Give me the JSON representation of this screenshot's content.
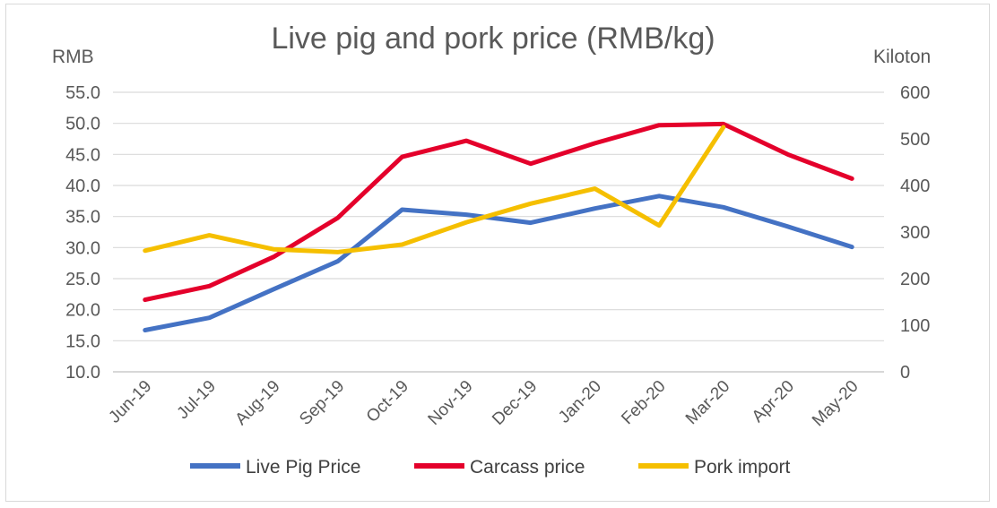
{
  "chart_data": {
    "type": "line",
    "title": "Live pig and pork price (RMB/kg)",
    "y_left_label": "RMB",
    "y_right_label": "Kiloton",
    "categories": [
      "Jun-19",
      "Jul-19",
      "Aug-19",
      "Sep-19",
      "Oct-19",
      "Nov-19",
      "Dec-19",
      "Jan-20",
      "Feb-20",
      "Mar-20",
      "Apr-20",
      "May-20"
    ],
    "y_left": {
      "min": 10,
      "max": 55,
      "ticks": [
        "10.0",
        "15.0",
        "20.0",
        "25.0",
        "30.0",
        "35.0",
        "40.0",
        "45.0",
        "50.0",
        "55.0"
      ]
    },
    "y_right": {
      "min": 0,
      "max": 600,
      "ticks": [
        "0",
        "100",
        "200",
        "300",
        "400",
        "500",
        "600"
      ]
    },
    "grid": true,
    "legend_position": "bottom",
    "series": [
      {
        "name": "Live Pig Price",
        "axis": "left",
        "color": "#4472C4",
        "values": [
          16.7,
          18.7,
          23.3,
          27.8,
          36.1,
          35.3,
          34.0,
          36.3,
          38.3,
          36.5,
          33.4,
          30.1
        ]
      },
      {
        "name": "Carcass price",
        "axis": "left",
        "color": "#E4002B",
        "values": [
          21.6,
          23.8,
          28.5,
          34.8,
          44.6,
          47.2,
          43.5,
          46.8,
          49.7,
          49.9,
          45.0,
          41.1
        ]
      },
      {
        "name": "Pork import",
        "axis": "right",
        "color": "#F5BF00",
        "values": [
          260,
          293,
          263,
          257,
          273,
          321,
          361,
          393,
          314,
          525,
          null,
          null
        ]
      }
    ]
  }
}
